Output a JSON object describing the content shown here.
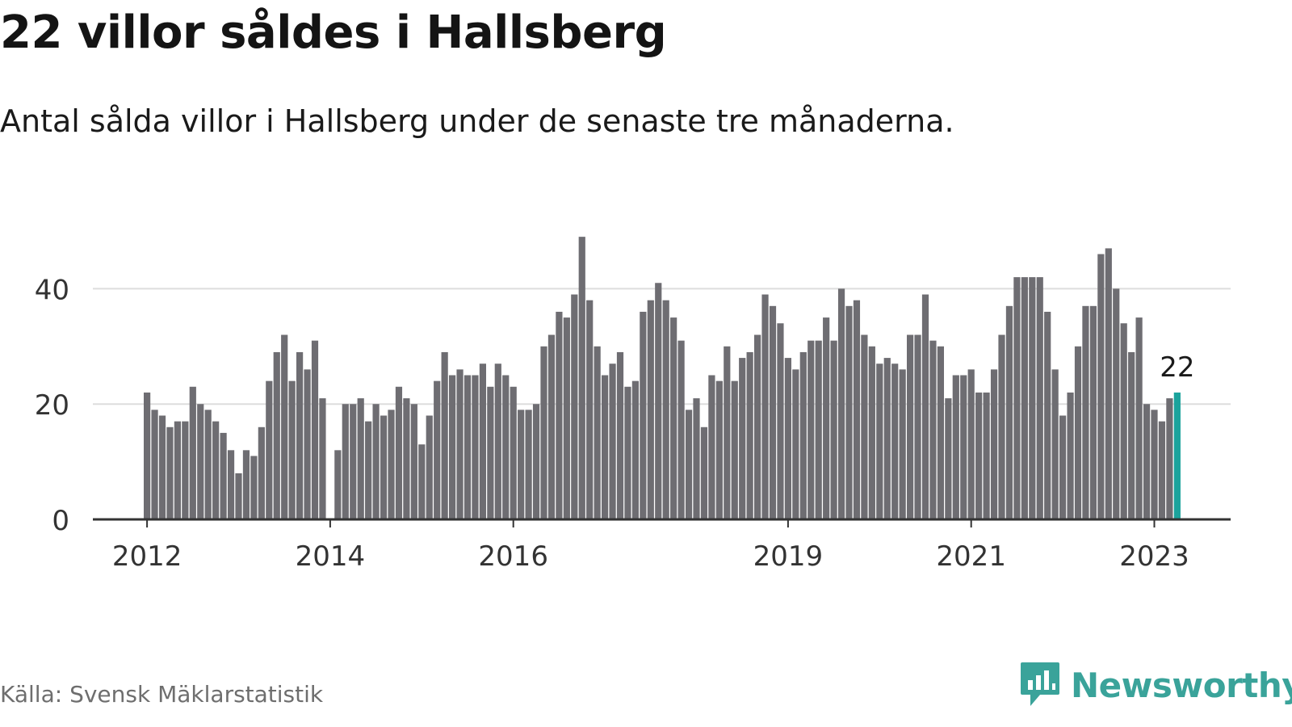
{
  "title": "22 villor såldes i Hallsberg",
  "subtitle": "Antal sålda villor i Hallsberg under de senaste tre månaderna.",
  "source": "Källa: Svensk Mäklarstatistik",
  "brand": {
    "name": "Newsworthy",
    "icon": "newsworthy-logo-icon"
  },
  "colors": {
    "bar": "#6e6d72",
    "highlight": "#1ba39c",
    "grid": "#dddddd",
    "axis": "#333333"
  },
  "chart_data": {
    "type": "bar",
    "title": "22 villor såldes i Hallsberg",
    "subtitle": "Antal sålda villor i Hallsberg under de senaste tre månaderna.",
    "xlabel": "",
    "ylabel": "",
    "ylim": [
      0,
      50
    ],
    "yticks": [
      0,
      20,
      40
    ],
    "x_ticks": [
      {
        "label": "2012",
        "index": 0
      },
      {
        "label": "2014",
        "index": 24
      },
      {
        "label": "2016",
        "index": 48
      },
      {
        "label": "2019",
        "index": 84
      },
      {
        "label": "2021",
        "index": 108
      },
      {
        "label": "2023",
        "index": 132
      }
    ],
    "highlight_index": 135,
    "highlight_label": "22",
    "grid": true,
    "legend": "none",
    "values": [
      22,
      19,
      18,
      16,
      17,
      17,
      23,
      20,
      19,
      17,
      15,
      12,
      8,
      12,
      11,
      16,
      24,
      29,
      32,
      24,
      29,
      26,
      31,
      21,
      0,
      12,
      20,
      20,
      21,
      17,
      20,
      18,
      19,
      23,
      21,
      20,
      13,
      18,
      24,
      29,
      25,
      26,
      25,
      25,
      27,
      23,
      27,
      25,
      23,
      19,
      19,
      20,
      30,
      32,
      36,
      35,
      39,
      49,
      38,
      30,
      25,
      27,
      29,
      23,
      24,
      36,
      38,
      41,
      38,
      35,
      31,
      19,
      21,
      16,
      25,
      24,
      30,
      24,
      28,
      29,
      32,
      39,
      37,
      34,
      28,
      26,
      29,
      31,
      31,
      35,
      31,
      40,
      37,
      38,
      32,
      30,
      27,
      28,
      27,
      26,
      32,
      32,
      39,
      31,
      30,
      21,
      25,
      25,
      26,
      22,
      22,
      26,
      32,
      37,
      42,
      42,
      42,
      42,
      36,
      26,
      18,
      22,
      30,
      37,
      37,
      46,
      47,
      40,
      34,
      29,
      35,
      20,
      19,
      17,
      21,
      22
    ]
  }
}
